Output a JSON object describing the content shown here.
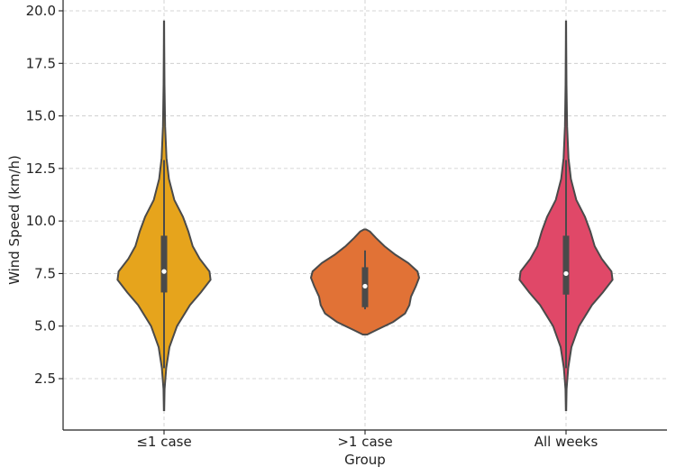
{
  "chart_data": {
    "type": "violin",
    "title": "",
    "xlabel": "Group",
    "ylabel": "Wind Speed (km/h)",
    "ylim": [
      0,
      20
    ],
    "yticks": [
      "2.5",
      "5.0",
      "7.5",
      "10.0",
      "12.5",
      "15.0",
      "17.5",
      "20.0"
    ],
    "ytick_values": [
      2.5,
      5.0,
      7.5,
      10.0,
      12.5,
      15.0,
      17.5,
      20.0
    ],
    "grid": true,
    "series": [
      {
        "name": "≤1 case",
        "color": "#e6a41c",
        "min": 1.0,
        "max": 19.5,
        "q1": 6.6,
        "median": 7.6,
        "q3": 9.3,
        "whisker_low": 3.0,
        "whisker_high": 12.9
      },
      {
        "name": ">1 case",
        "color": "#e17236",
        "min": 4.6,
        "max": 9.6,
        "q1": 5.9,
        "median": 6.9,
        "q3": 7.8,
        "whisker_low": 5.8,
        "whisker_high": 8.6
      },
      {
        "name": "All weeks",
        "color": "#e04868",
        "min": 1.0,
        "max": 19.5,
        "q1": 6.5,
        "median": 7.5,
        "q3": 9.3,
        "whisker_low": 3.0,
        "whisker_high": 12.9
      }
    ]
  }
}
